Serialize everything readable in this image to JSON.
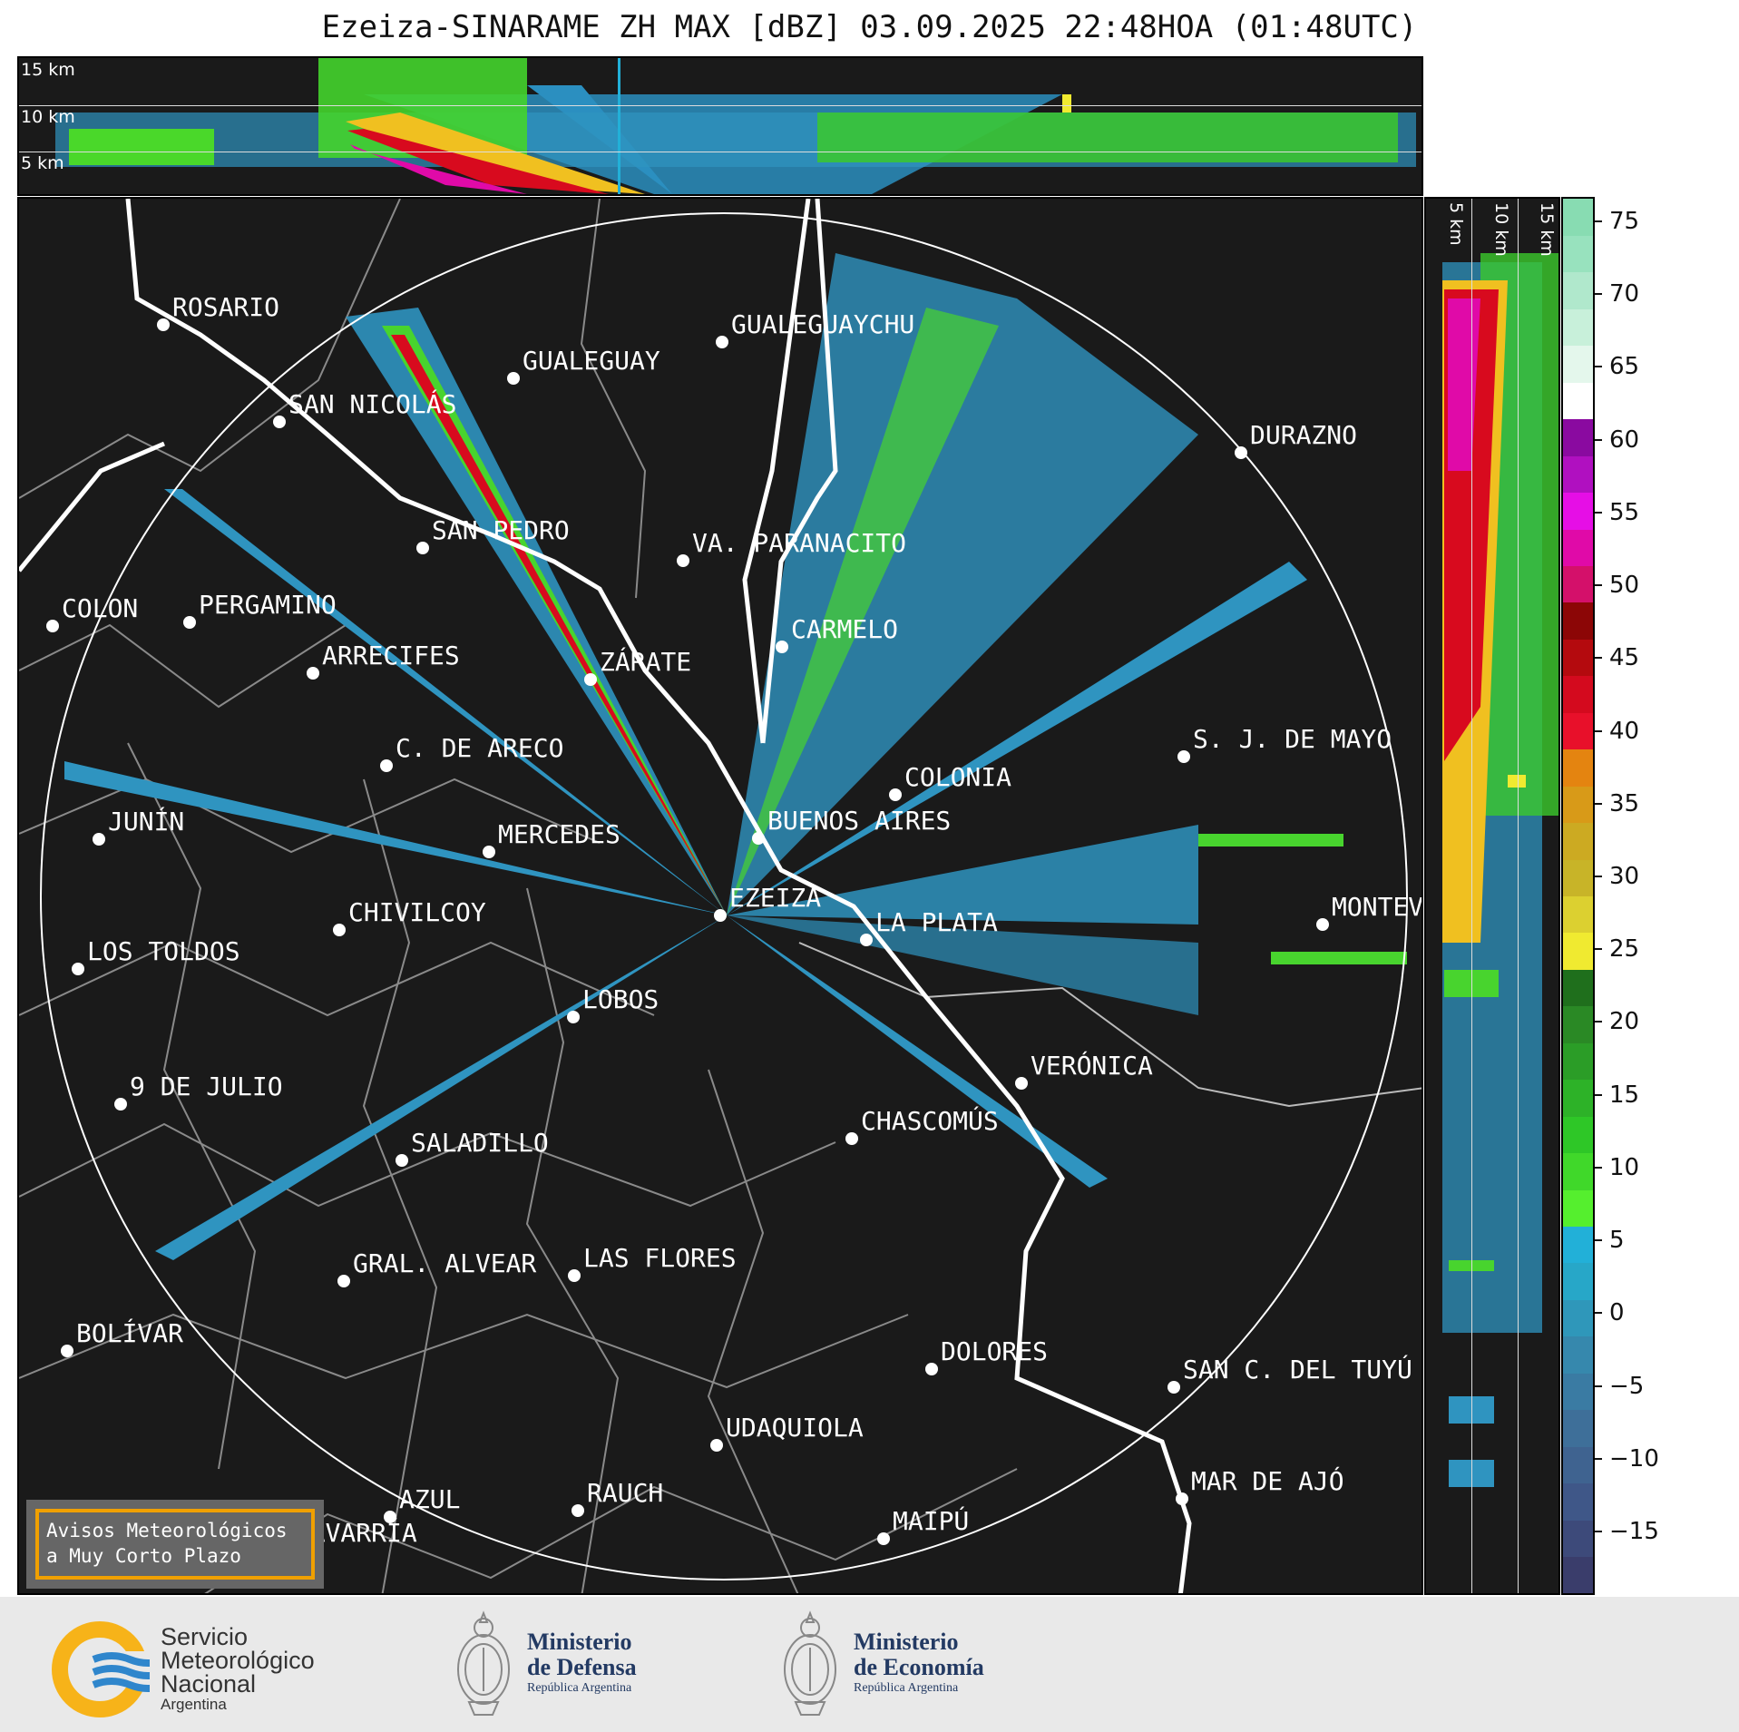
{
  "title": "Ezeiza-SINARAME ZH MAX [dBZ] 03.09.2025 22:48HOA (01:48UTC)",
  "height_labels": [
    "15 km",
    "10 km",
    "5 km"
  ],
  "colorbar": {
    "ticks": [
      "75",
      "70",
      "65",
      "60",
      "55",
      "50",
      "45",
      "40",
      "35",
      "30",
      "25",
      "20",
      "15",
      "10",
      "5",
      "0",
      "−5",
      "−10",
      "−15"
    ],
    "color_bands": [
      "#3a3d6b",
      "#3d4a7a",
      "#3f5788",
      "#3f6390",
      "#3e6f99",
      "#3a7ba3",
      "#3688ad",
      "#2f97ba",
      "#27a7c8",
      "#22b0d8",
      "#55ef2e",
      "#40d82a",
      "#2ec727",
      "#2db228",
      "#2b9d27",
      "#2a8925",
      "#1f6f1c",
      "#f0ea30",
      "#dcd030",
      "#c8b428",
      "#ccaa22",
      "#d89a18",
      "#e48410",
      "#e8102a",
      "#d40a1e",
      "#b40a0e",
      "#8c0606",
      "#d4106a",
      "#e00aa8",
      "#e60ee6",
      "#b010c0",
      "#8a0aa0",
      "#ffffff",
      "#e4f7ec",
      "#c8f0da",
      "#b0e8cc",
      "#98e2be",
      "#88dcb2"
    ]
  },
  "cities": [
    {
      "name": "ROSARIO"
    },
    {
      "name": "GUALEGUAYCHU"
    },
    {
      "name": "GUALEGUAY"
    },
    {
      "name": "SAN NICOLÁS"
    },
    {
      "name": "DURAZNO"
    },
    {
      "name": "SAN PEDRO"
    },
    {
      "name": "VA. PARANACITO"
    },
    {
      "name": "COLON"
    },
    {
      "name": "PERGAMINO"
    },
    {
      "name": "CARMELO"
    },
    {
      "name": "ARRECIFES"
    },
    {
      "name": "ZÁRATE"
    },
    {
      "name": "S. J. DE MAYO"
    },
    {
      "name": "C. DE ARECO"
    },
    {
      "name": "COLONIA"
    },
    {
      "name": "JUNÍN"
    },
    {
      "name": "MERCEDES"
    },
    {
      "name": "BUENOS AIRES"
    },
    {
      "name": "MONTEVIDEO"
    },
    {
      "name": "EZEIZA"
    },
    {
      "name": "CHIVILCOY"
    },
    {
      "name": "LA PLATA"
    },
    {
      "name": "LOS TOLDOS"
    },
    {
      "name": "LOBOS"
    },
    {
      "name": "VERÓNICA"
    },
    {
      "name": "9 DE JULIO"
    },
    {
      "name": "CHASCOMÚS"
    },
    {
      "name": "SALADILLO"
    },
    {
      "name": "GRAL. ALVEAR"
    },
    {
      "name": "LAS FLORES"
    },
    {
      "name": "BOLÍVAR"
    },
    {
      "name": "DOLORES"
    },
    {
      "name": "SAN C. DEL TUYÚ"
    },
    {
      "name": "UDAQUIOLA"
    },
    {
      "name": "MAR DE AJÓ"
    },
    {
      "name": "RAUCH"
    },
    {
      "name": "AZUL"
    },
    {
      "name": "MAIPÚ"
    },
    {
      "name": "OLAVARRÍA"
    }
  ],
  "avisos": {
    "line1": "Avisos Meteorológicos",
    "line2": "a Muy Corto Plazo"
  },
  "footer": {
    "smn": {
      "line1": "Servicio",
      "line2": "Meteorológico",
      "line3": "Nacional",
      "line4": "Argentina"
    },
    "defensa": {
      "line1": "Ministerio",
      "line2": "de Defensa",
      "line3": "República Argentina"
    },
    "economia": {
      "line1": "Ministerio",
      "line2": "de Economía",
      "line3": "República Argentina"
    }
  }
}
